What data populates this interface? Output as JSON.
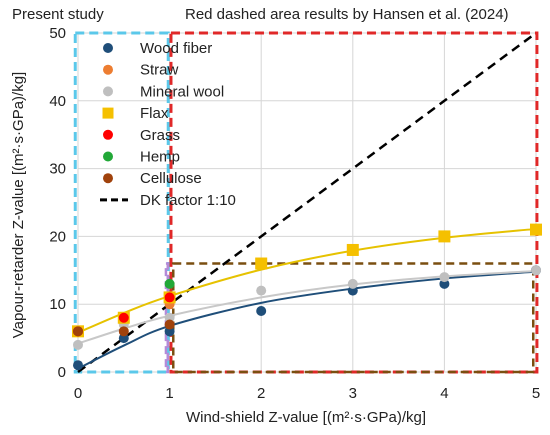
{
  "chart_data": {
    "type": "scatter",
    "title": "",
    "xlabel": "Wind-shield Z-value  [(m²·s·GPa)/kg]",
    "ylabel": "Vapour-retarder Z-value  [(m²·s·GPa)/kg]",
    "xlim": [
      0,
      5
    ],
    "ylim": [
      0,
      50
    ],
    "x_ticks": [
      "0",
      "1",
      "2",
      "3",
      "4",
      "5"
    ],
    "y_ticks": [
      "0",
      "10",
      "20",
      "30",
      "40",
      "50"
    ],
    "grid": true,
    "legend_position": "top-left",
    "annotations": {
      "present_study": "Present study",
      "hansen": "Red dashed area results by Hansen et al. (2024)"
    },
    "regions": [
      {
        "color": "#5bc8ea",
        "x": [
          0,
          1
        ],
        "y": [
          0,
          50
        ]
      },
      {
        "color": "#e02828",
        "x": [
          1,
          5
        ],
        "y": [
          0,
          50
        ]
      }
    ],
    "sub_regions": [
      {
        "color": "#b48ad8",
        "x": [
          0,
          1
        ],
        "y": [
          0,
          16
        ]
      },
      {
        "color": "#7a4f10",
        "x": [
          1,
          5
        ],
        "y": [
          0,
          16
        ]
      }
    ],
    "series": [
      {
        "name": "Wood fiber",
        "color": "#1f4e79",
        "marker": "circle",
        "x": [
          0,
          0.5,
          1,
          2,
          3,
          4,
          5
        ],
        "y": [
          1,
          5,
          6,
          9,
          12,
          13,
          15
        ],
        "fit": [
          [
            0,
            0.5
          ],
          [
            0.5,
            3.9
          ],
          [
            1,
            6.8
          ],
          [
            2,
            10.2
          ],
          [
            3,
            12.3
          ],
          [
            4,
            13.8
          ],
          [
            5,
            14.8
          ]
        ],
        "fit_color": "#1f4e79"
      },
      {
        "name": "Straw",
        "color": "#ed7d31",
        "marker": "circle",
        "x": [
          0,
          0.5,
          1
        ],
        "y": [
          6,
          8,
          10
        ]
      },
      {
        "name": "Mineral wool",
        "color": "#bfbfbf",
        "marker": "circle",
        "x": [
          0,
          0.5,
          1,
          2,
          3,
          4,
          5
        ],
        "y": [
          4,
          7,
          8,
          12,
          13,
          14,
          15
        ],
        "fit": [
          [
            0,
            4.2
          ],
          [
            0.5,
            6.4
          ],
          [
            1,
            8.3
          ],
          [
            2,
            11.0
          ],
          [
            3,
            12.9
          ],
          [
            4,
            14.1
          ],
          [
            5,
            14.9
          ]
        ],
        "fit_color": "#c8c8c8"
      },
      {
        "name": "Flax",
        "color": "#f5c000",
        "marker": "square",
        "x": [
          0,
          0.5,
          1,
          2,
          3,
          4,
          5
        ],
        "y": [
          6,
          8,
          11,
          16,
          18,
          20,
          21
        ],
        "fit": [
          [
            0,
            5.8
          ],
          [
            0.5,
            8.7
          ],
          [
            1,
            11.2
          ],
          [
            2,
            15.1
          ],
          [
            3,
            17.9
          ],
          [
            4,
            19.8
          ],
          [
            5,
            21.1
          ]
        ],
        "fit_color": "#e6c200"
      },
      {
        "name": "Grass",
        "color": "#ff0000",
        "marker": "circle",
        "x": [
          0,
          0.5,
          1
        ],
        "y": [
          6,
          8,
          11
        ]
      },
      {
        "name": "Hemp",
        "color": "#22a838",
        "marker": "circle",
        "x": [
          1
        ],
        "y": [
          13
        ]
      },
      {
        "name": "Cellulose",
        "color": "#a0420c",
        "marker": "circle",
        "x": [
          0,
          0.5,
          1
        ],
        "y": [
          6,
          6,
          7
        ]
      },
      {
        "name": "DK factor 1:10",
        "color": "#000000",
        "line_style": "dashed",
        "x": [
          0,
          5
        ],
        "y": [
          0,
          50
        ]
      }
    ]
  }
}
